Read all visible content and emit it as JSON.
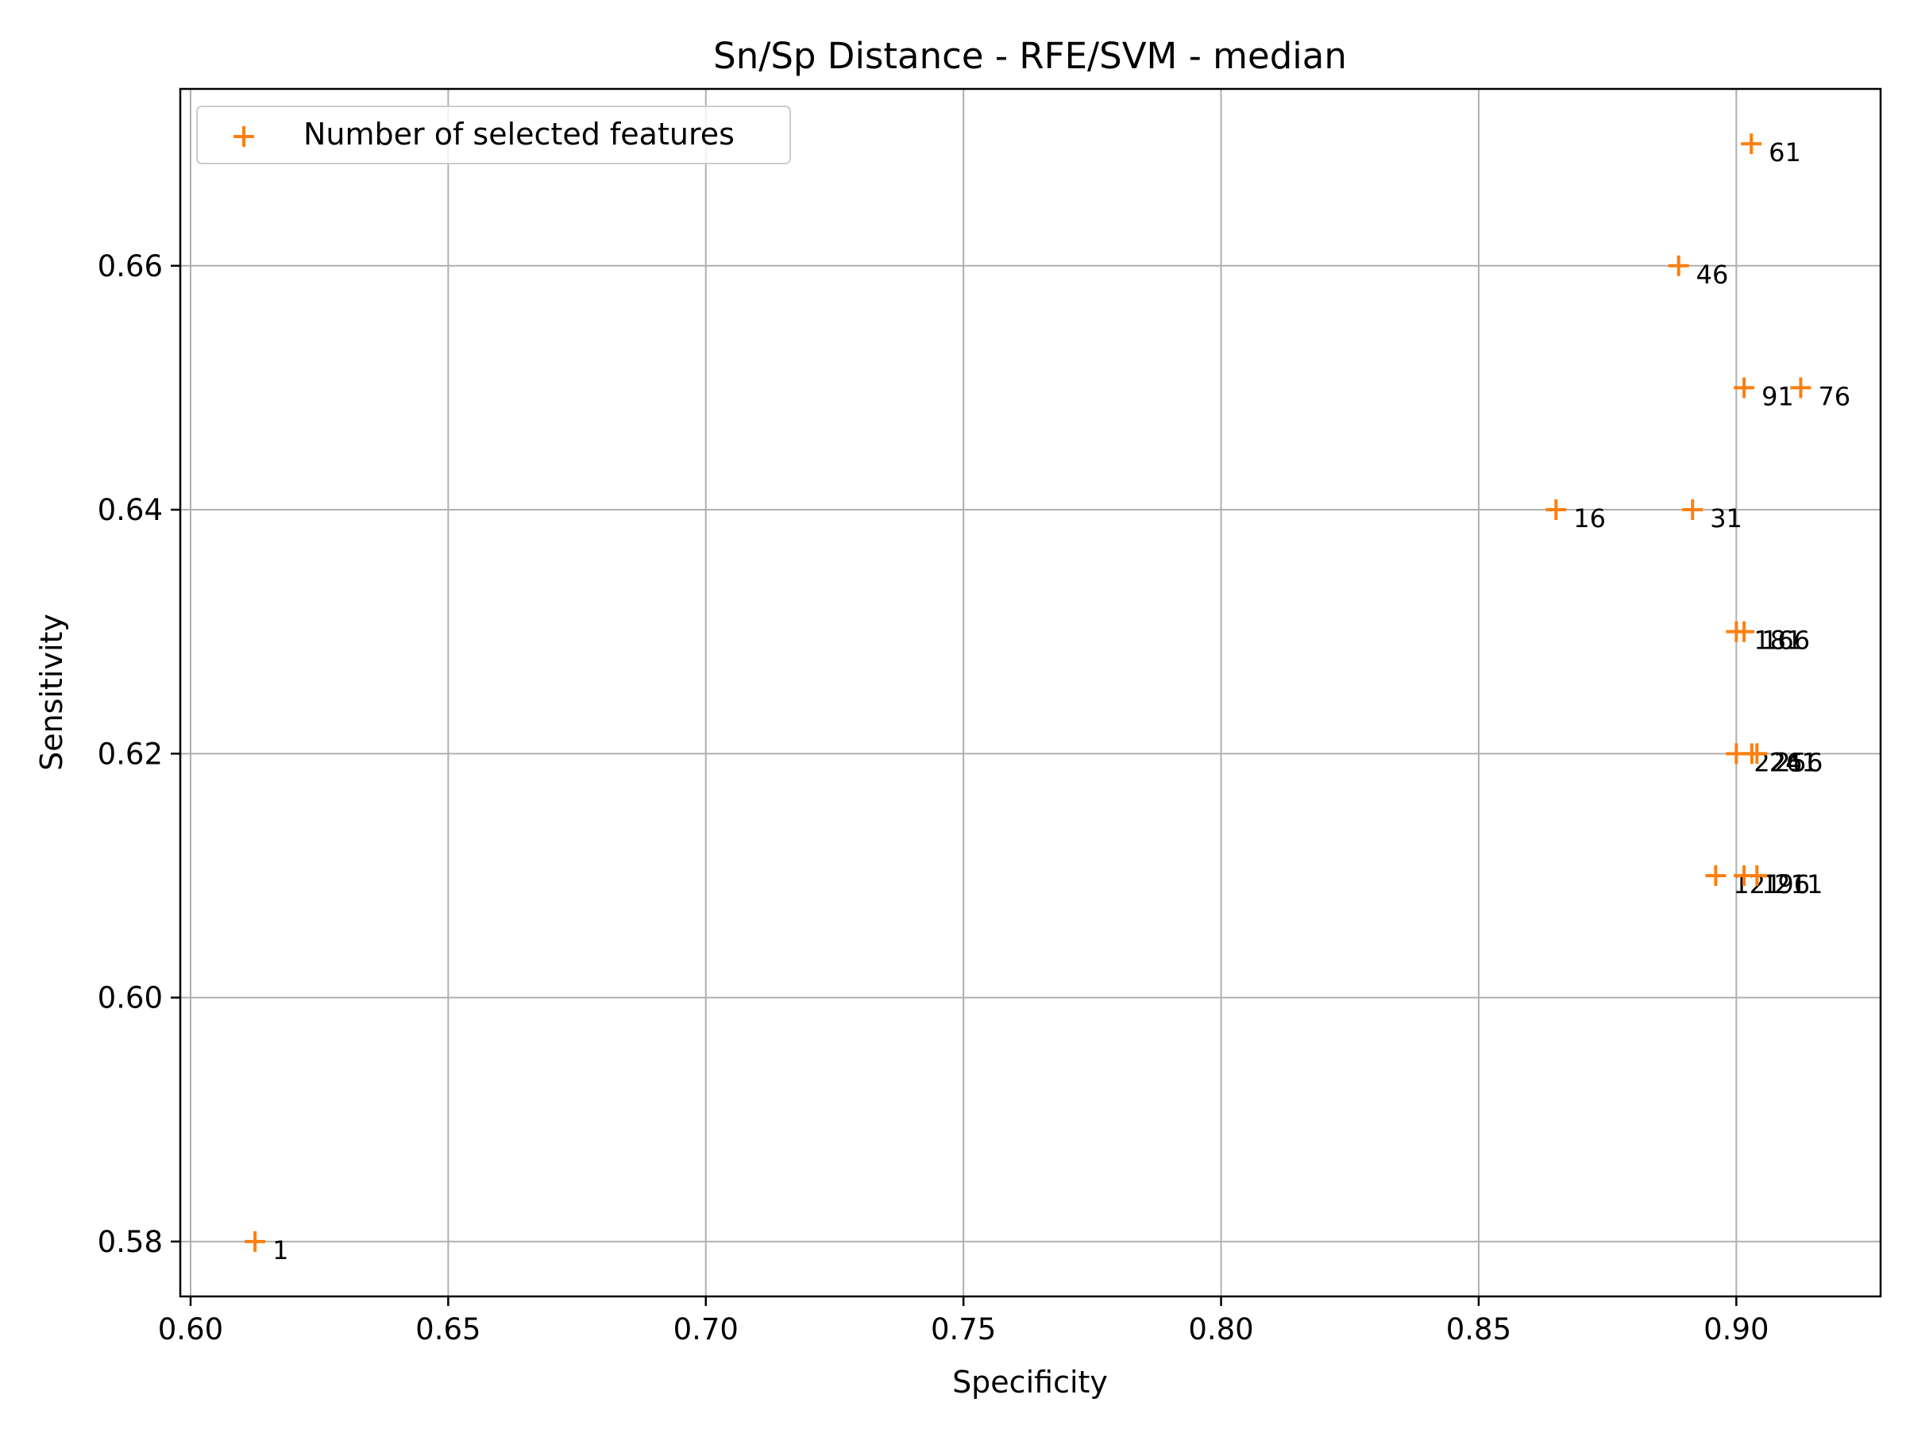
{
  "chart_data": {
    "type": "scatter",
    "title": "Sn/Sp Distance - RFE/SVM - median",
    "xlabel": "Specificity",
    "ylabel": "Sensitivity",
    "xlim": [
      0.598,
      0.928
    ],
    "ylim": [
      0.5755,
      0.6745
    ],
    "xticks": [
      0.6,
      0.65,
      0.7,
      0.75,
      0.8,
      0.85,
      0.9
    ],
    "xtick_labels": [
      "0.60",
      "0.65",
      "0.70",
      "0.75",
      "0.80",
      "0.85",
      "0.90"
    ],
    "yticks": [
      0.58,
      0.6,
      0.62,
      0.64,
      0.66
    ],
    "ytick_labels": [
      "0.58",
      "0.60",
      "0.62",
      "0.64",
      "0.66"
    ],
    "grid": true,
    "legend": {
      "label": "Number of selected features",
      "position": "upper-left"
    },
    "marker": "+",
    "color": "#ff7f0e",
    "points": [
      {
        "x": 0.6125,
        "y": 0.58,
        "label": "1"
      },
      {
        "x": 0.865,
        "y": 0.64,
        "label": "16"
      },
      {
        "x": 0.8915,
        "y": 0.64,
        "label": "31"
      },
      {
        "x": 0.8888,
        "y": 0.66,
        "label": "46"
      },
      {
        "x": 0.9029,
        "y": 0.67,
        "label": "61"
      },
      {
        "x": 0.9125,
        "y": 0.65,
        "label": "76"
      },
      {
        "x": 0.9015,
        "y": 0.65,
        "label": "91"
      },
      {
        "x": 0.896,
        "y": 0.61,
        "label": "121"
      },
      {
        "x": 0.9015,
        "y": 0.61,
        "label": "196"
      },
      {
        "x": 0.904,
        "y": 0.61,
        "label": "211"
      },
      {
        "x": 0.9,
        "y": 0.62,
        "label": "226"
      },
      {
        "x": 0.903,
        "y": 0.62,
        "label": "241"
      },
      {
        "x": 0.904,
        "y": 0.62,
        "label": "256"
      },
      {
        "x": 0.9,
        "y": 0.63,
        "label": "181"
      },
      {
        "x": 0.9015,
        "y": 0.63,
        "label": "166"
      }
    ]
  }
}
